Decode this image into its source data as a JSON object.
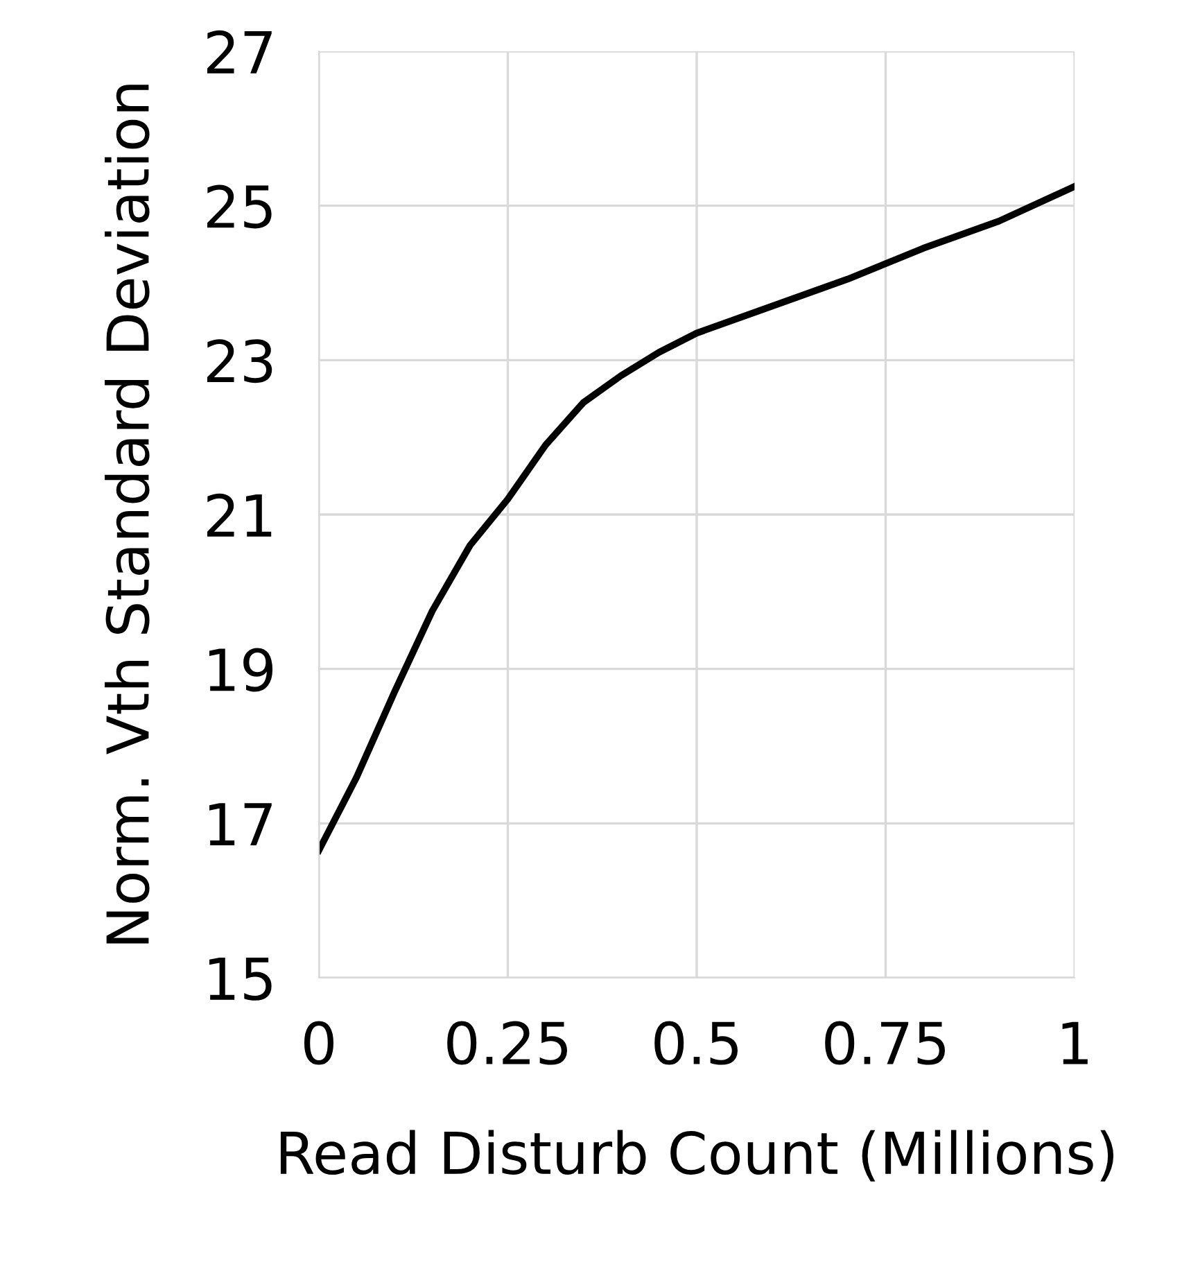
{
  "chart_data": {
    "type": "line",
    "xlabel": "Read Disturb Count (Millions)",
    "ylabel": "Norm. Vth Standard Deviation",
    "x": [
      0,
      0.05,
      0.1,
      0.15,
      0.2,
      0.25,
      0.3,
      0.35,
      0.4,
      0.45,
      0.5,
      0.6,
      0.7,
      0.8,
      0.9,
      1
    ],
    "series": [
      {
        "color": "#000000",
        "values": [
          16.65,
          17.6,
          18.7,
          19.75,
          20.6,
          21.2,
          21.9,
          22.45,
          22.8,
          23.1,
          23.35,
          23.7,
          24.05,
          24.45,
          24.8,
          25.25
        ]
      }
    ],
    "xlim": [
      0,
      1
    ],
    "xticks": [
      0,
      0.25,
      0.5,
      0.75,
      1
    ],
    "ylim": [
      15,
      27
    ],
    "yticks": [
      15,
      17,
      19,
      21,
      23,
      25,
      27
    ],
    "grid": true,
    "legend": false,
    "marker": "none",
    "line_style": "solid"
  }
}
